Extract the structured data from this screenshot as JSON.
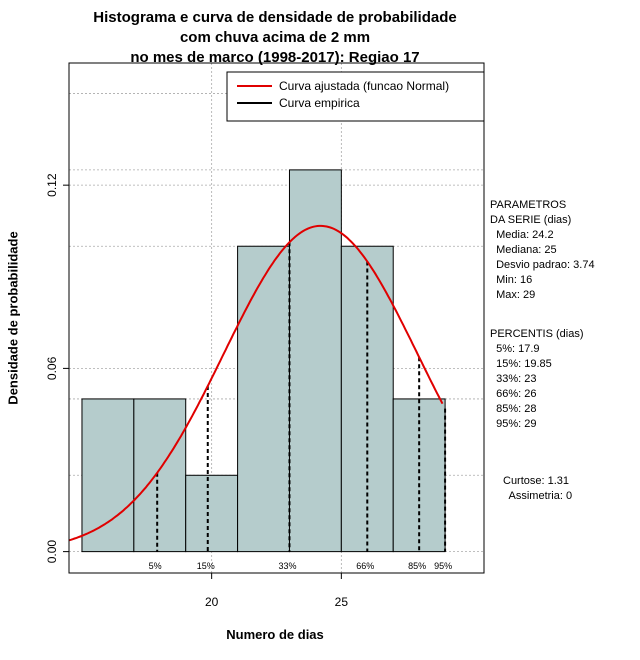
{
  "chart_data": {
    "type": "bar",
    "title_lines": [
      "Histograma e curva de densidade de probabilidade",
      "com chuva acima de 2 mm",
      "no mes de marco (1998-2017): Regiao 17"
    ],
    "xlabel": "Numero de dias",
    "ylabel": "Densidade de probabilidade",
    "xlim": [
      14.5,
      30.5
    ],
    "ylim": [
      -0.007,
      0.16
    ],
    "x_ticks": [
      20,
      25
    ],
    "y_ticks": [
      0.0,
      0.06,
      0.12
    ],
    "y_tick_labels": [
      "0.00",
      "0.06",
      "0.12"
    ],
    "grid": true,
    "bins": [
      {
        "x0": 15,
        "x1": 17,
        "density": 0.05
      },
      {
        "x0": 17,
        "x1": 19,
        "density": 0.05
      },
      {
        "x0": 19,
        "x1": 21,
        "density": 0.025
      },
      {
        "x0": 21,
        "x1": 23,
        "density": 0.1
      },
      {
        "x0": 23,
        "x1": 25,
        "density": 0.125
      },
      {
        "x0": 25,
        "x1": 27,
        "density": 0.1
      },
      {
        "x0": 27,
        "x1": 29,
        "density": 0.05
      }
    ],
    "series": [
      {
        "name": "Curva ajustada (funcao Normal)",
        "color": "#e00000",
        "kind": "normal",
        "mean": 24.2,
        "sd": 3.74,
        "x_range": [
          14.5,
          28.9
        ]
      },
      {
        "name": "Curva empirica",
        "color": "#000000"
      }
    ],
    "percentile_lines": [
      {
        "label": "5%",
        "x": 17.9
      },
      {
        "label": "15%",
        "x": 19.85
      },
      {
        "label": "33%",
        "x": 23
      },
      {
        "label": "66%",
        "x": 26
      },
      {
        "label": "85%",
        "x": 28
      },
      {
        "label": "95%",
        "x": 29
      }
    ],
    "legend_position": "top-right",
    "bar_color": "#b5cccc"
  },
  "side_panel": {
    "params_lines": [
      "PARAMETROS",
      "DA SERIE (dias)",
      "  Media: 24.2",
      "  Mediana: 25",
      "  Desvio padrao: 3.74",
      "  Min: 16",
      "  Max: 29"
    ],
    "percentis_lines": [
      "PERCENTIS (dias)",
      "  5%: 17.9",
      "  15%: 19.85",
      "  33%: 23",
      "  66%: 26",
      "  85%: 28",
      "  95%: 29"
    ],
    "stats_lines": [
      "Curtose: 1.31",
      "  Assimetria: 0"
    ]
  }
}
